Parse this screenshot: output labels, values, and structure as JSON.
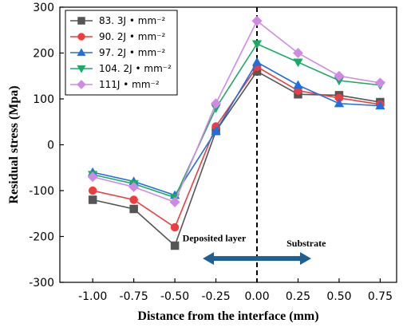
{
  "chart_data": {
    "type": "line",
    "title": "",
    "xlabel": "Distance from the interface (mm)",
    "ylabel": "Residual stress (Mpa)",
    "x": [
      -1.0,
      -0.75,
      -0.5,
      -0.25,
      0.0,
      0.25,
      0.5,
      0.75
    ],
    "x_tick_labels": [
      "-1.00",
      "-0.75",
      "-0.50",
      "-0.25",
      "0.00",
      "0.25",
      "0.50",
      "0.75"
    ],
    "xlim": [
      -1.2,
      0.85
    ],
    "ylim": [
      -300,
      300
    ],
    "y_ticks": [
      -300,
      -200,
      -100,
      0,
      100,
      200,
      300
    ],
    "y_tick_labels": [
      "-300",
      "-200",
      "-100",
      "0",
      "100",
      "200",
      "300"
    ],
    "legend_position": "top-left",
    "grid": false,
    "series": [
      {
        "name": "83. 3J • mm⁻²",
        "color": "#555555",
        "marker": "square",
        "values": [
          -120,
          -140,
          -220,
          30,
          160,
          110,
          108,
          93
        ]
      },
      {
        "name": "90. 2J • mm⁻²",
        "color": "#f03c3c",
        "marker": "circle",
        "values": [
          -100,
          -120,
          -180,
          40,
          170,
          118,
          102,
          88
        ]
      },
      {
        "name": "97. 2J • mm⁻²",
        "color": "#1f6fe0",
        "marker": "triangle-up",
        "values": [
          -60,
          -80,
          -110,
          30,
          180,
          130,
          90,
          85
        ]
      },
      {
        "name": "104. 2J • mm⁻²",
        "color": "#1aaa66",
        "marker": "triangle-down",
        "values": [
          -65,
          -85,
          -115,
          80,
          220,
          180,
          140,
          130
        ]
      },
      {
        "name": "111J • mm⁻²",
        "color": "#d08ae6",
        "marker": "diamond",
        "values": [
          -70,
          -92,
          -125,
          90,
          270,
          200,
          150,
          135
        ]
      }
    ],
    "annotations": {
      "left_label": "Deposited layer",
      "right_label": "Substrate",
      "interface_line_x": 0.0,
      "arrow_color": "#1f5f94",
      "arrow_from_x": -0.33,
      "arrow_to_x": 0.33,
      "arrow_y": -248
    }
  }
}
